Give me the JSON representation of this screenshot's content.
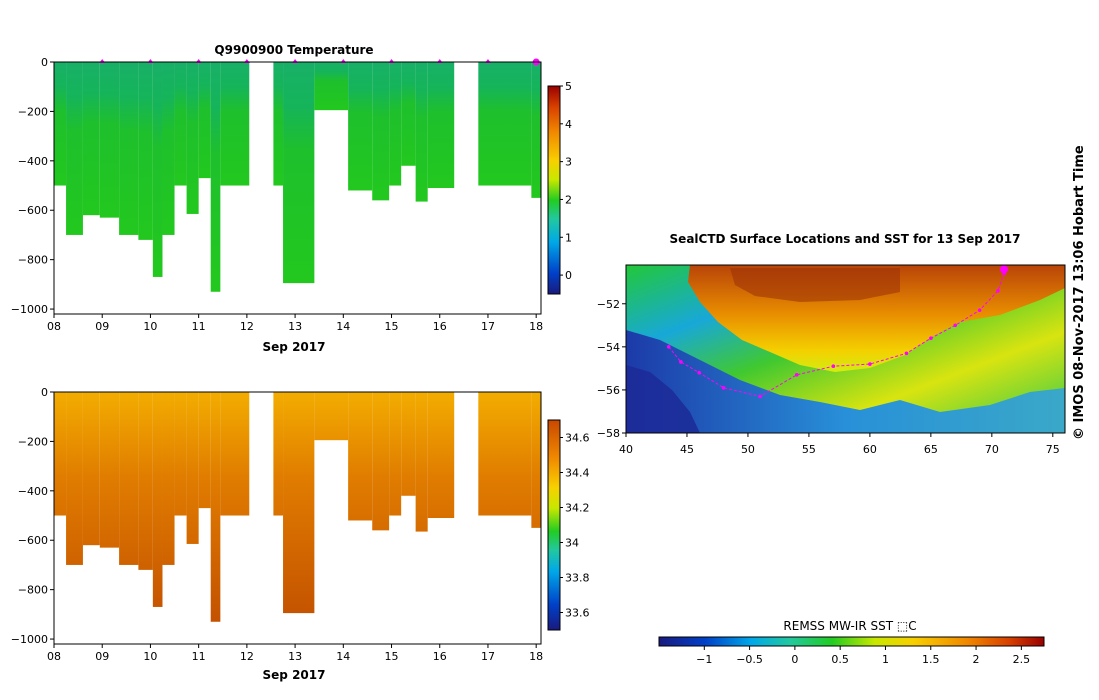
{
  "side_stamp": "© IMOS 08-Nov-2017 13:06 Hobart Time",
  "colors": {
    "track": "#ff00ff",
    "missing": "#ffffff",
    "axis": "#000000"
  },
  "chart_data": [
    {
      "id": "temperature",
      "type": "heatmap",
      "title": "Q9900900  Temperature",
      "xlabel": "Sep 2017",
      "ylabel": "",
      "x_ticks": [
        "08",
        "09",
        "10",
        "11",
        "12",
        "13",
        "14",
        "15",
        "16",
        "17",
        "18"
      ],
      "x_range_days": [
        8,
        18.1
      ],
      "ylim": [
        -1020,
        0
      ],
      "y_ticks": [
        0,
        -200,
        -400,
        -600,
        -800,
        -1000
      ],
      "y_tick_labels": [
        "0",
        "−200",
        "−400",
        "−600",
        "−800",
        "−1000"
      ],
      "colorbar": {
        "range": [
          -0.5,
          5
        ],
        "ticks": [
          0,
          1,
          2,
          3,
          4,
          5
        ],
        "tick_labels": [
          "0",
          "1",
          "2",
          "3",
          "4",
          "5"
        ]
      },
      "surface_markers_days": [
        9,
        10,
        11,
        12,
        13,
        14,
        15,
        16,
        17,
        18
      ],
      "profiles": [
        {
          "start": 8.0,
          "end": 8.25,
          "max_depth": 500
        },
        {
          "start": 8.25,
          "end": 8.6,
          "max_depth": 700
        },
        {
          "start": 8.6,
          "end": 8.95,
          "max_depth": 620
        },
        {
          "start": 8.95,
          "end": 9.35,
          "max_depth": 630
        },
        {
          "start": 9.35,
          "end": 9.75,
          "max_depth": 700
        },
        {
          "start": 9.75,
          "end": 10.05,
          "max_depth": 720
        },
        {
          "start": 10.05,
          "end": 10.25,
          "max_depth": 870
        },
        {
          "start": 10.25,
          "end": 10.5,
          "max_depth": 700
        },
        {
          "start": 10.5,
          "end": 10.75,
          "max_depth": 500
        },
        {
          "start": 10.75,
          "end": 11.0,
          "max_depth": 615
        },
        {
          "start": 11.0,
          "end": 11.25,
          "max_depth": 470
        },
        {
          "start": 11.25,
          "end": 11.45,
          "max_depth": 930
        },
        {
          "start": 11.45,
          "end": 12.05,
          "max_depth": 500
        },
        {
          "start": 12.55,
          "end": 12.75,
          "max_depth": 500
        },
        {
          "start": 12.75,
          "end": 13.4,
          "max_depth": 895
        },
        {
          "start": 13.4,
          "end": 14.1,
          "max_depth": 195
        },
        {
          "start": 14.1,
          "end": 14.6,
          "max_depth": 520
        },
        {
          "start": 14.6,
          "end": 14.95,
          "max_depth": 560
        },
        {
          "start": 14.95,
          "end": 15.2,
          "max_depth": 500
        },
        {
          "start": 15.2,
          "end": 15.5,
          "max_depth": 420
        },
        {
          "start": 15.5,
          "end": 15.75,
          "max_depth": 565
        },
        {
          "start": 15.75,
          "end": 16.3,
          "max_depth": 510
        },
        {
          "start": 16.8,
          "end": 17.9,
          "max_depth": 500
        },
        {
          "start": 17.9,
          "end": 18.1,
          "max_depth": 550
        }
      ]
    },
    {
      "id": "salinity",
      "type": "heatmap",
      "title": "",
      "xlabel": "Sep 2017",
      "ylabel": "",
      "x_ticks": [
        "08",
        "09",
        "10",
        "11",
        "12",
        "13",
        "14",
        "15",
        "16",
        "17",
        "18"
      ],
      "x_range_days": [
        8,
        18.1
      ],
      "ylim": [
        -1020,
        0
      ],
      "y_ticks": [
        0,
        -200,
        -400,
        -600,
        -800,
        -1000
      ],
      "y_tick_labels": [
        "0",
        "−200",
        "−400",
        "−600",
        "−800",
        "−1000"
      ],
      "colorbar": {
        "range": [
          33.5,
          34.7
        ],
        "ticks": [
          33.6,
          33.8,
          34,
          34.2,
          34.4,
          34.6
        ],
        "tick_labels": [
          "33.6",
          "33.8",
          "34",
          "34.2",
          "34.4",
          "34.6"
        ]
      },
      "profiles_same_as": "temperature"
    },
    {
      "id": "sst_map",
      "type": "heatmap",
      "title": "SealCTD Surface Locations and SST for 13 Sep 2017",
      "xlabel": "",
      "ylabel": "",
      "x_ticks": [
        40,
        45,
        50,
        55,
        60,
        65,
        70,
        75
      ],
      "x_tick_labels": [
        "40",
        "45",
        "50",
        "55",
        "60",
        "65",
        "70",
        "75"
      ],
      "xlim": [
        40,
        76
      ],
      "y_ticks": [
        -52,
        -54,
        -56,
        -58
      ],
      "y_tick_labels": [
        "−52",
        "−54",
        "−56",
        "−58"
      ],
      "ylim": [
        -58,
        -50.2
      ],
      "colorbar": {
        "label": "REMSS MW-IR SST ⬚C",
        "range": [
          -1.5,
          2.75
        ],
        "ticks": [
          -1,
          -0.5,
          0,
          0.5,
          1,
          1.5,
          2,
          2.5
        ],
        "tick_labels": [
          "−1",
          "−0.5",
          "0",
          "0.5",
          "1",
          "1.5",
          "2",
          "2.5"
        ]
      },
      "track": [
        {
          "lon": 43.5,
          "lat": -54.0
        },
        {
          "lon": 44.5,
          "lat": -54.7
        },
        {
          "lon": 46.0,
          "lat": -55.2
        },
        {
          "lon": 48.0,
          "lat": -55.9
        },
        {
          "lon": 51.0,
          "lat": -56.3
        },
        {
          "lon": 54.0,
          "lat": -55.3
        },
        {
          "lon": 57.0,
          "lat": -54.9
        },
        {
          "lon": 60.0,
          "lat": -54.8
        },
        {
          "lon": 63.0,
          "lat": -54.3
        },
        {
          "lon": 65.0,
          "lat": -53.6
        },
        {
          "lon": 67.0,
          "lat": -53.0
        },
        {
          "lon": 69.0,
          "lat": -52.3
        },
        {
          "lon": 70.5,
          "lat": -51.4
        },
        {
          "lon": 71.0,
          "lat": -50.6
        }
      ],
      "latest_position": {
        "lon": 71.0,
        "lat": -50.4
      }
    }
  ]
}
